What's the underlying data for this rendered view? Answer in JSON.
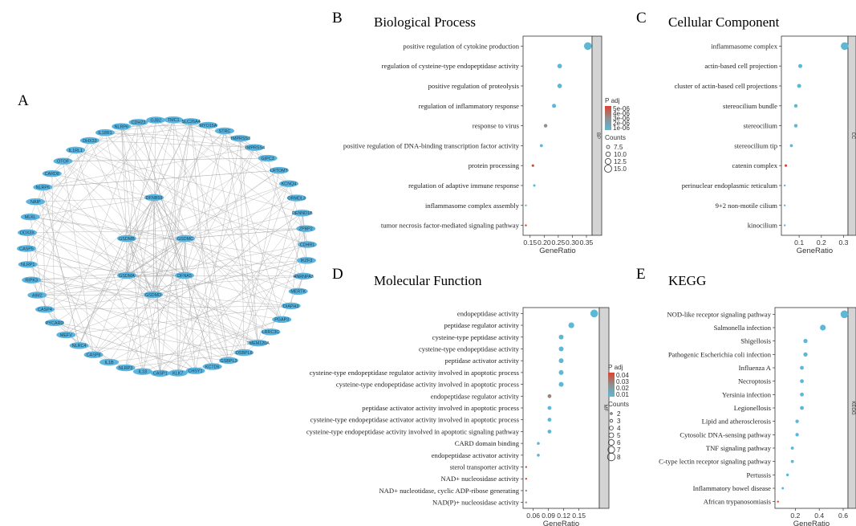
{
  "panel_labels": {
    "A": "A",
    "B": "B",
    "C": "C",
    "D": "D",
    "E": "E"
  },
  "colors": {
    "low": "#5bb8d6",
    "high": "#d9432f",
    "mid": "#8f8f8f",
    "strip": "#d4d4d4",
    "edge": "#a8a8a8",
    "node": "#5ab4e0"
  },
  "network": {
    "outer_nodes": [
      "NLRP6",
      "CDH23",
      "GJB2",
      "TMC1",
      "SLC26A4",
      "MYO15A",
      "STRC",
      "TMPRSS3",
      "TMPRSS4",
      "GIPC3",
      "LRTOMT",
      "KCNQ4",
      "ORMDL3",
      "DENND1B",
      "ZPBP2",
      "CDHR1",
      "IKZF3",
      "HNRNPA3",
      "MERTK",
      "DIAPH3",
      "PGAP3",
      "LRRC3C",
      "TMEM120A",
      "OSBPL6",
      "GSBPL3",
      "KCTD6",
      "CHSY1",
      "KLK7",
      "CASP1",
      "IL18",
      "NLRP3",
      "IL1B",
      "CASP8",
      "NLRC4",
      "MEFV",
      "PYCARD",
      "CASP4",
      "AIM2",
      "RIPK3",
      "NLRP1",
      "CASP5",
      "DDX3X",
      "MLKL",
      "NAIP",
      "NLRP6",
      "CARD8",
      "OTOF",
      "IL1RL1",
      "DHX33",
      "IL18R1"
    ],
    "inner_nodes": [
      "DFNB59",
      "GSDMB",
      "GSDMC",
      "GSDMA",
      "DFNA5",
      "GSDMD"
    ]
  },
  "chart_data": [
    {
      "panel": "B",
      "type": "scatter",
      "title": "Biological Process",
      "xlabel": "GeneRatio",
      "strip": "BP",
      "categories": [
        "positive regulation of cytokine production",
        "regulation of cysteine-type endopeptidase activity",
        "positive regulation of proteolysis",
        "regulation of inflammatory response",
        "response to virus",
        "positive regulation of DNA-binding transcription factor activity",
        "protein processing",
        "regulation of adaptive immune response",
        "inflammasome complex assembly",
        "tumor necrosis factor-mediated signaling pathway"
      ],
      "x": [
        0.355,
        0.255,
        0.255,
        0.235,
        0.205,
        0.19,
        0.16,
        0.165,
        0.135,
        0.135
      ],
      "counts": [
        16,
        10,
        10,
        9,
        8,
        7,
        6,
        6,
        5,
        5
      ],
      "p_adj": [
        1e-06,
        1e-06,
        1e-06,
        1e-06,
        3e-06,
        1e-06,
        5e-06,
        1e-06,
        1e-06,
        5e-06
      ],
      "xlim": [
        0.125,
        0.37
      ],
      "xticks": [
        "0.15",
        "0.20",
        "0.25",
        "0.30",
        "0.35"
      ],
      "xtick_values": [
        0.15,
        0.2,
        0.25,
        0.3,
        0.35
      ],
      "legend": {
        "color_title": "P adj",
        "color_labels": [
          "5e-06",
          "4e-06",
          "3e-06",
          "2e-06",
          "1e-06"
        ],
        "size_title": "Counts",
        "size_labels": [
          "7.5",
          "10.0",
          "12.5",
          "15.0"
        ],
        "size_values": [
          7.5,
          10,
          12.5,
          15
        ]
      },
      "crange": [
        1e-06,
        5e-06
      ],
      "srange": [
        5,
        16
      ]
    },
    {
      "panel": "C",
      "type": "scatter",
      "title": "Cellular Component",
      "xlabel": "GeneRatio",
      "strip": "CC",
      "categories": [
        "inflammasome complex",
        "actin-based cell projection",
        "cluster of actin-based cell projections",
        "stereocilium bundle",
        "stereocilium",
        "stereocilium tip",
        "catenin complex",
        "perinuclear endoplasmic reticulum",
        "9+2 non-motile cilium",
        "kinocilium"
      ],
      "x": [
        0.305,
        0.105,
        0.1,
        0.085,
        0.085,
        0.065,
        0.04,
        0.035,
        0.035,
        0.035
      ],
      "counts": [
        12,
        5,
        5,
        4,
        4,
        3,
        2,
        1,
        1,
        1
      ],
      "p_adj": [
        1,
        1,
        1,
        1,
        1,
        1,
        5,
        1,
        1,
        1
      ],
      "xlim": [
        0.02,
        0.32
      ],
      "xticks": [
        "0.1",
        "0.2",
        "0.3"
      ],
      "xtick_values": [
        0.1,
        0.2,
        0.3
      ],
      "crange": [
        1,
        5
      ],
      "srange": [
        1,
        12
      ]
    },
    {
      "panel": "D",
      "type": "scatter",
      "title": "Molecular Function",
      "xlabel": "GeneRatio",
      "strip": "MF",
      "categories": [
        "endopeptidase activity",
        "peptidase regulator activity",
        "cysteine-type peptidase activity",
        "cysteine-type endopeptidase activity",
        "peptidase activator activity",
        "cysteine-type endopeptidase regulator activity involved in apoptotic process",
        "cysteine-type endopeptidase activity involved in apoptotic process",
        "endopeptidase regulator activity",
        "peptidase activator activity involved in apoptotic process",
        "cysteine-type endopeptidase activator activity involved in apoptotic process",
        "cysteine-type endopeptidase activity involved in apoptotic signaling pathway",
        "CARD domain binding",
        "endopeptidase activator activity",
        "sterol transporter activity",
        "NAD+ nucleosidase activity",
        "NAD+ nucleotidase, cyclic ADP-ribose generating",
        "NAD(P)+ nucleosidase activity"
      ],
      "x": [
        0.18,
        0.135,
        0.115,
        0.115,
        0.115,
        0.115,
        0.115,
        0.092,
        0.092,
        0.092,
        0.092,
        0.07,
        0.07,
        0.046,
        0.046,
        0.046,
        0.046
      ],
      "counts": [
        8,
        6,
        5,
        5,
        5,
        5,
        5,
        4,
        4,
        4,
        4,
        3,
        3,
        2,
        2,
        2,
        2
      ],
      "p_adj": [
        0.005,
        0.005,
        0.005,
        0.005,
        0.005,
        0.005,
        0.005,
        0.025,
        0.005,
        0.005,
        0.005,
        0.005,
        0.005,
        0.04,
        0.04,
        0.02,
        0.02
      ],
      "xlim": [
        0.04,
        0.19
      ],
      "xticks": [
        "0.06",
        "0.09",
        "0.12",
        "0.15"
      ],
      "xtick_values": [
        0.06,
        0.09,
        0.12,
        0.15
      ],
      "legend": {
        "color_title": "P adj",
        "color_labels": [
          "0.04",
          "0.03",
          "0.02",
          "0.01"
        ],
        "size_title": "Counts",
        "size_labels": [
          "2",
          "3",
          "4",
          "5",
          "6",
          "7",
          "8"
        ],
        "size_values": [
          2,
          3,
          4,
          5,
          6,
          7,
          8
        ]
      },
      "crange": [
        0.005,
        0.04
      ],
      "srange": [
        2,
        8
      ]
    },
    {
      "panel": "E",
      "type": "scatter",
      "title": "KEGG",
      "xlabel": "GeneRatio",
      "strip": "KEGG",
      "categories": [
        "NOD-like receptor signaling pathway",
        "Salmonella infection",
        "Shigellosis",
        "Pathogenic Escherichia coli infection",
        "Influenza A",
        "Necroptosis",
        "Yersinia infection",
        "Legionellosis",
        "Lipid and atherosclerosis",
        "Cytosolic DNA-sensing pathway",
        "TNF signaling pathway",
        "C-type lectin receptor signaling pathway",
        "Pertussis",
        "Inflammatory bowel disease",
        "African trypanosomiasis"
      ],
      "x": [
        0.61,
        0.43,
        0.285,
        0.285,
        0.255,
        0.255,
        0.255,
        0.255,
        0.215,
        0.215,
        0.175,
        0.175,
        0.135,
        0.095,
        0.055
      ],
      "counts": [
        16,
        11,
        7,
        7,
        6,
        6,
        6,
        6,
        5,
        5,
        4,
        4,
        3,
        2,
        1
      ],
      "p_adj": [
        1,
        1,
        1,
        1,
        1,
        1,
        1,
        1,
        1,
        1,
        1,
        1,
        1,
        1,
        5
      ],
      "xlim": [
        0.03,
        0.64
      ],
      "xticks": [
        "0.2",
        "0.4",
        "0.6"
      ],
      "xtick_values": [
        0.2,
        0.4,
        0.6
      ],
      "crange": [
        1,
        5
      ],
      "srange": [
        1,
        16
      ]
    }
  ]
}
